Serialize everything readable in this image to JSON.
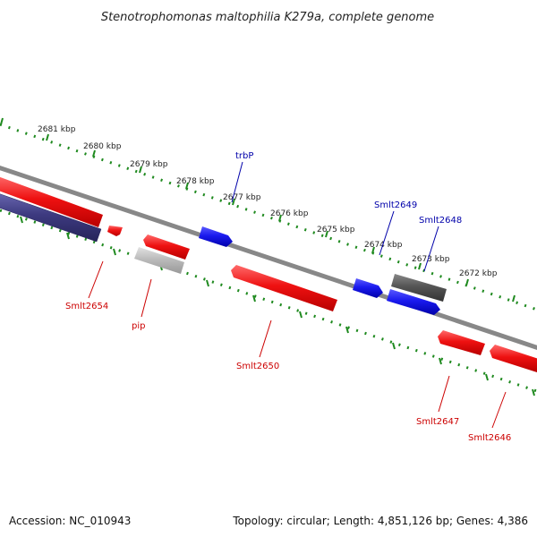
{
  "title": "Stenotrophomonas maltophilia K279a, complete genome",
  "footer": {
    "accession": "Accession: NC_010943",
    "topology": "Topology: circular; Length: 4,851,126 bp; Genes: 4,386"
  },
  "colors": {
    "forward_gene": "#1a1aee",
    "reverse_gene": "#ee1111",
    "other_forward": "#555555",
    "other_reverse": "#bbbbbb",
    "hit_reverse": "#3d3a80",
    "backbone": "#888888",
    "ticks": "#1f8a1f",
    "forward_label": "#0000aa",
    "reverse_label": "#cc0000"
  },
  "scale": {
    "unit": "kbp",
    "ticks": [
      {
        "label": "2681 kbp"
      },
      {
        "label": "2680 kbp"
      },
      {
        "label": "2679 kbp"
      },
      {
        "label": "2678 kbp"
      },
      {
        "label": "2677 kbp"
      },
      {
        "label": "2676 kbp"
      },
      {
        "label": "2675 kbp"
      },
      {
        "label": "2674 kbp"
      },
      {
        "label": "2673 kbp"
      },
      {
        "label": "2672 kbp"
      }
    ]
  },
  "gene_labels": {
    "trbP": "trbP",
    "smlt2649": "Smlt2649",
    "smlt2648": "Smlt2648",
    "smlt2654": "Smlt2654",
    "pip": "pip",
    "smlt2650": "Smlt2650",
    "smlt2647": "Smlt2647",
    "smlt2646": "Smlt2646"
  }
}
